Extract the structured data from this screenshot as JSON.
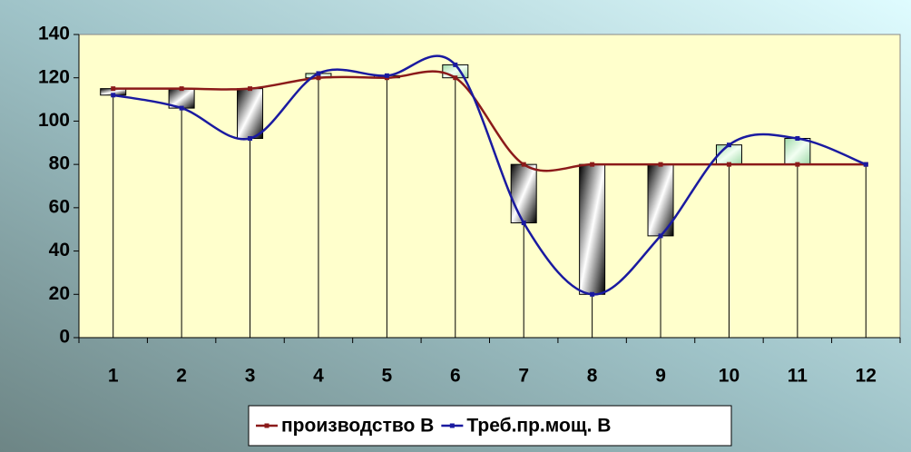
{
  "chart_data": {
    "type": "line-updown",
    "categories": [
      "1",
      "2",
      "3",
      "4",
      "5",
      "6",
      "7",
      "8",
      "9",
      "10",
      "11",
      "12"
    ],
    "series": [
      {
        "name": "производство В",
        "color": "#8b1a1a",
        "values": [
          115,
          115,
          115,
          120,
          120,
          120,
          80,
          80,
          80,
          80,
          80,
          80
        ]
      },
      {
        "name": "Треб.пр.мощ. В",
        "color": "#1a1aa0",
        "values": [
          112,
          106,
          92,
          122,
          121,
          126,
          53,
          20,
          47,
          89,
          92,
          80
        ]
      }
    ],
    "ylim": [
      0,
      140
    ],
    "yticks": [
      0,
      20,
      40,
      60,
      80,
      100,
      120,
      140
    ],
    "legend": "bottom",
    "drop_lines": true,
    "up_down_bars": true
  }
}
